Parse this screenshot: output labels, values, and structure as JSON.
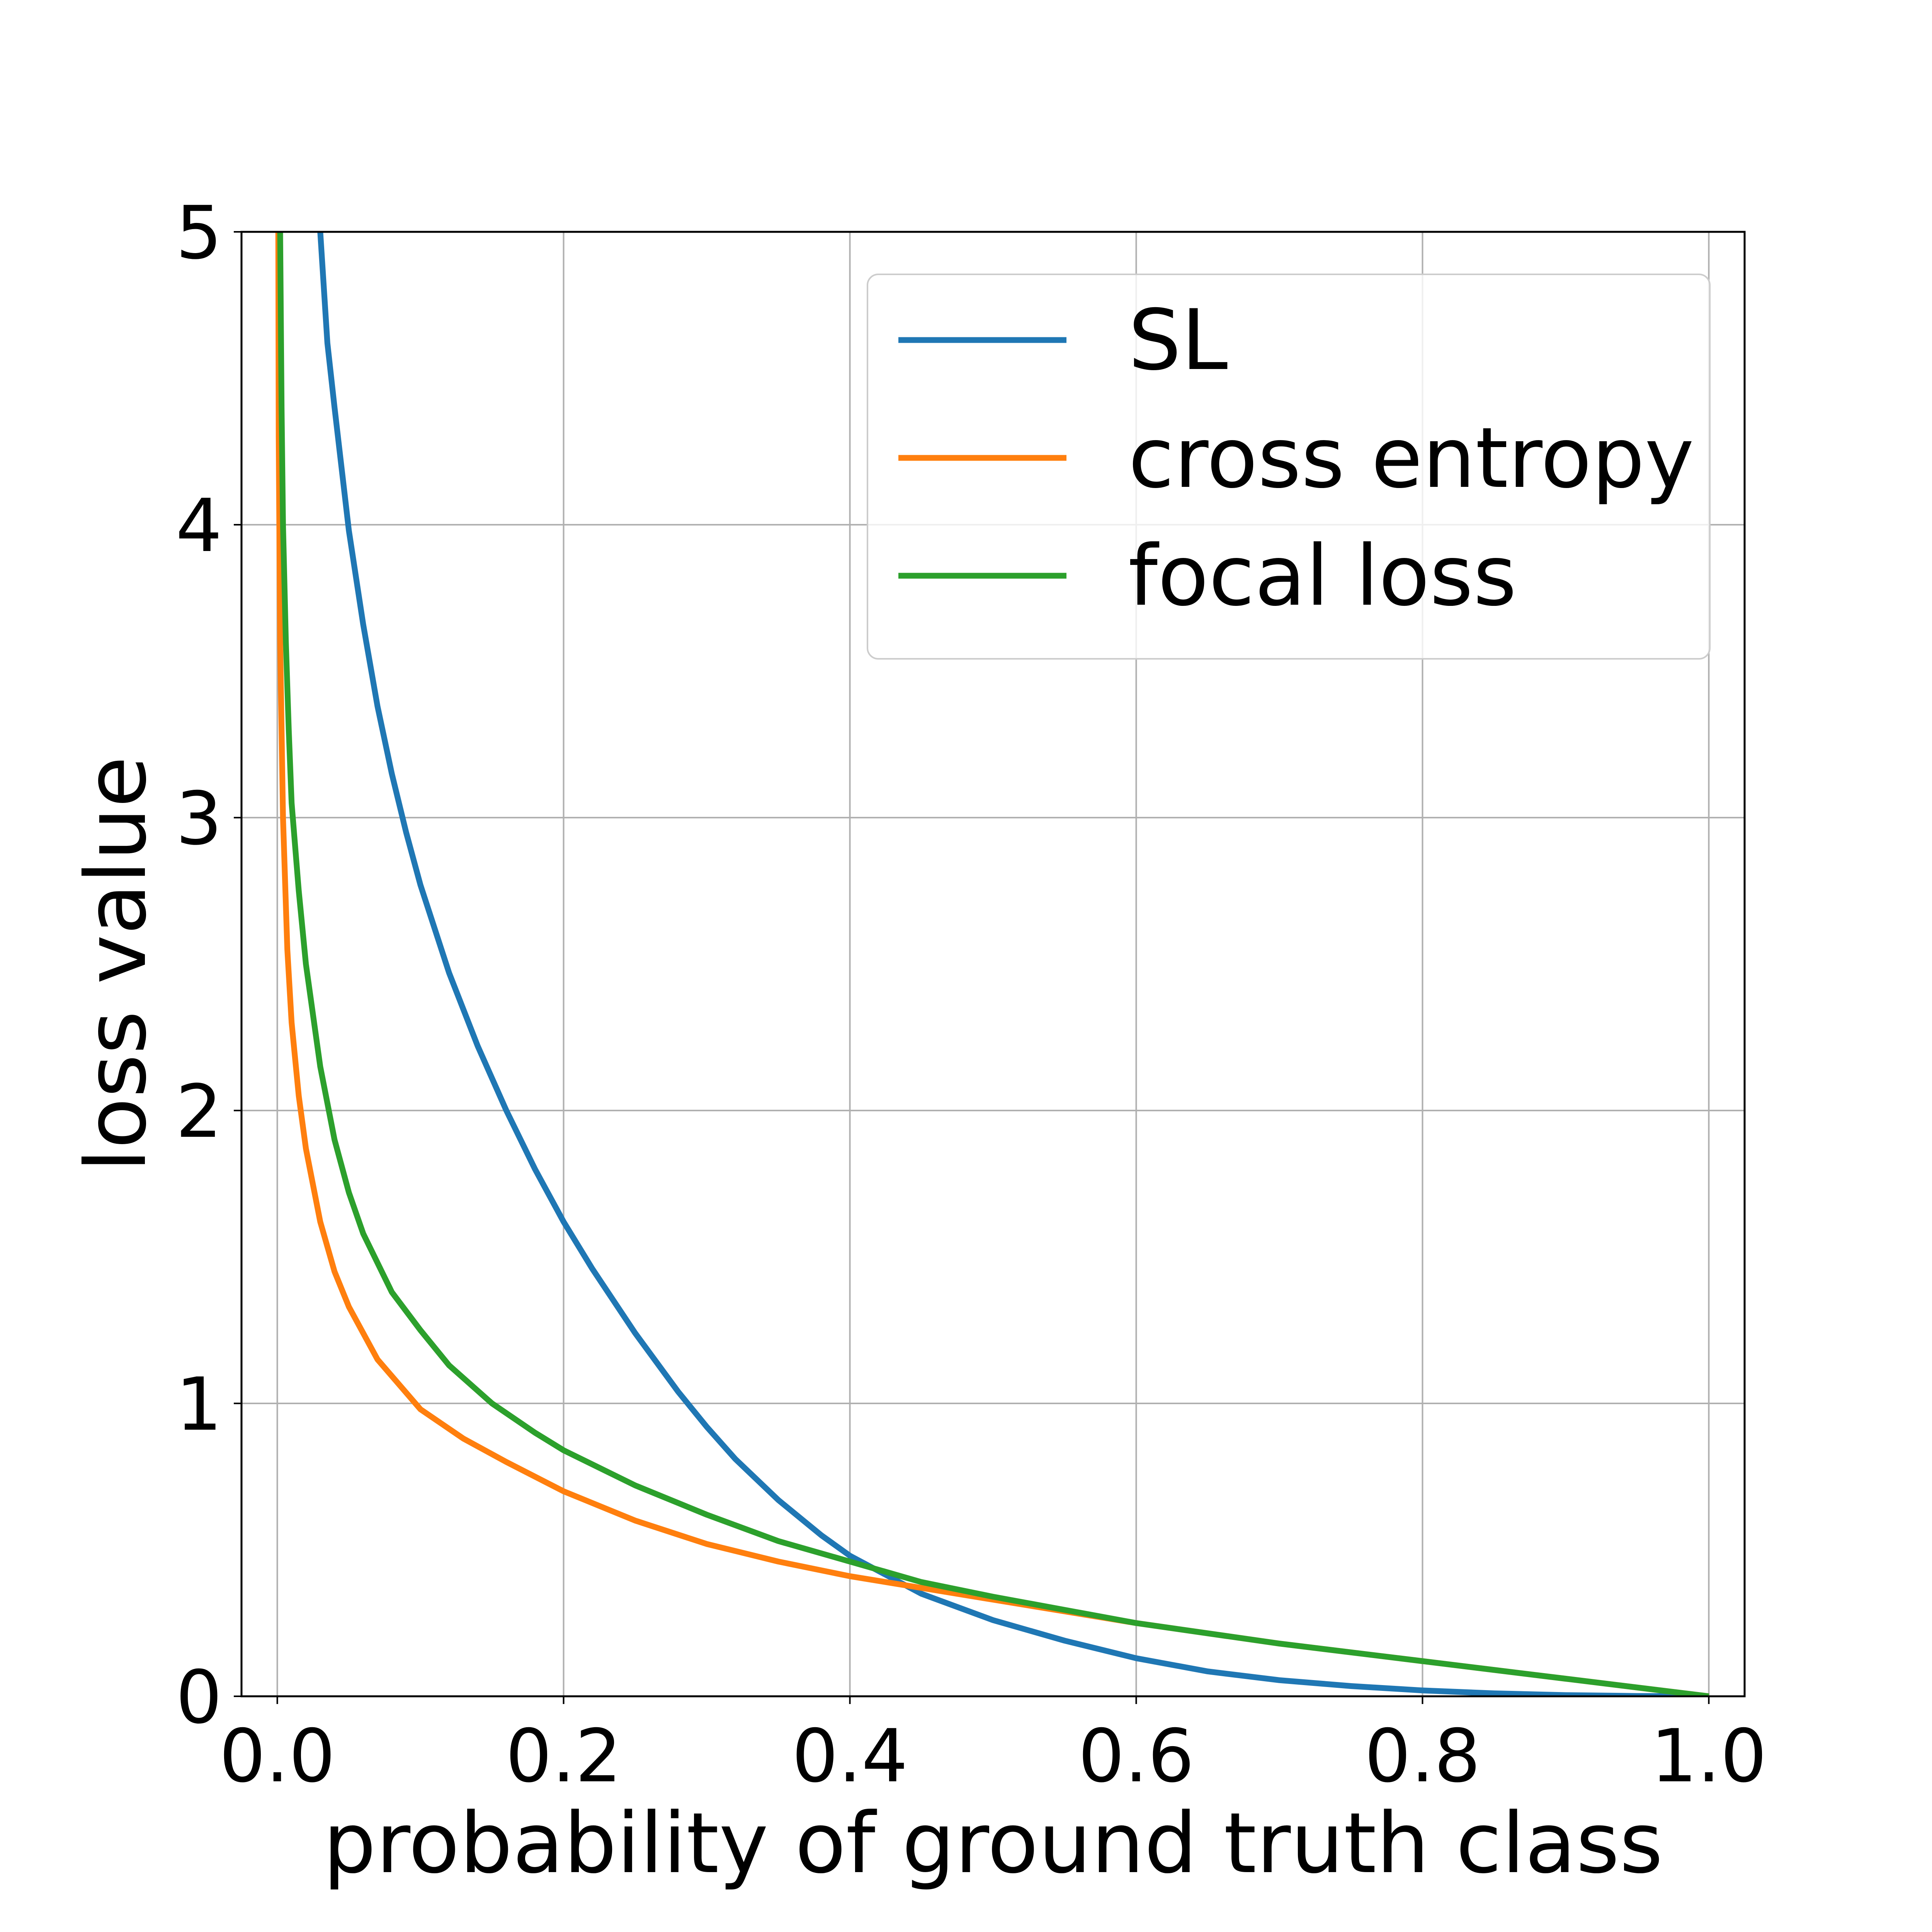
{
  "chart_data": {
    "type": "line",
    "title": "",
    "xlabel": "probability of ground truth class",
    "ylabel": "loss value",
    "xlim": [
      -0.025,
      1.025
    ],
    "ylim": [
      0,
      5
    ],
    "grid": true,
    "legend_position": "upper-right",
    "x_ticks": [
      "0.0",
      "0.2",
      "0.4",
      "0.6",
      "0.8",
      "1.0"
    ],
    "x_tick_values": [
      0.0,
      0.2,
      0.4,
      0.6,
      0.8,
      1.0
    ],
    "y_ticks": [
      "0",
      "1",
      "2",
      "3",
      "4",
      "5"
    ],
    "y_tick_values": [
      0,
      1,
      2,
      3,
      4,
      5
    ],
    "series": [
      {
        "name": "SL",
        "color": "#1f77b4",
        "x": [
          0.03,
          0.035,
          0.04,
          0.05,
          0.06,
          0.07,
          0.08,
          0.09,
          0.1,
          0.12,
          0.14,
          0.16,
          0.18,
          0.2,
          0.22,
          0.25,
          0.28,
          0.3,
          0.32,
          0.35,
          0.38,
          0.4,
          0.45,
          0.5,
          0.55,
          0.6,
          0.65,
          0.7,
          0.75,
          0.8,
          0.85,
          0.9,
          0.95,
          1.0
        ],
        "values": [
          5.0,
          4.62,
          4.4,
          3.98,
          3.66,
          3.38,
          3.15,
          2.95,
          2.77,
          2.47,
          2.22,
          2.0,
          1.8,
          1.62,
          1.46,
          1.24,
          1.04,
          0.92,
          0.81,
          0.67,
          0.55,
          0.48,
          0.35,
          0.26,
          0.19,
          0.13,
          0.085,
          0.055,
          0.035,
          0.02,
          0.01,
          0.004,
          0.001,
          0.0
        ]
      },
      {
        "name": "cross entropy",
        "color": "#ff7f0e",
        "x": [
          0.0007,
          0.001,
          0.002,
          0.004,
          0.007,
          0.01,
          0.015,
          0.02,
          0.03,
          0.04,
          0.05,
          0.07,
          0.1,
          0.13,
          0.16,
          0.2,
          0.25,
          0.3,
          0.35,
          0.4,
          0.45,
          0.5,
          0.6,
          0.7,
          0.8,
          0.9,
          1.0
        ],
        "values": [
          5.0,
          4.3,
          3.6,
          3.0,
          2.55,
          2.3,
          2.05,
          1.87,
          1.62,
          1.45,
          1.33,
          1.15,
          0.98,
          0.88,
          0.8,
          0.7,
          0.6,
          0.52,
          0.46,
          0.41,
          0.37,
          0.33,
          0.25,
          0.18,
          0.12,
          0.06,
          0.0
        ]
      },
      {
        "name": "focal loss",
        "color": "#2ca02c",
        "x": [
          0.002,
          0.003,
          0.004,
          0.006,
          0.008,
          0.01,
          0.015,
          0.02,
          0.03,
          0.04,
          0.05,
          0.06,
          0.08,
          0.1,
          0.12,
          0.15,
          0.18,
          0.2,
          0.25,
          0.3,
          0.35,
          0.4,
          0.45,
          0.5,
          0.6,
          0.7,
          0.8,
          0.9,
          1.0
        ],
        "values": [
          5.0,
          4.4,
          4.0,
          3.6,
          3.3,
          3.05,
          2.75,
          2.5,
          2.15,
          1.9,
          1.72,
          1.58,
          1.38,
          1.25,
          1.13,
          1.0,
          0.9,
          0.84,
          0.72,
          0.62,
          0.53,
          0.46,
          0.39,
          0.34,
          0.25,
          0.18,
          0.12,
          0.06,
          0.0
        ]
      }
    ]
  }
}
